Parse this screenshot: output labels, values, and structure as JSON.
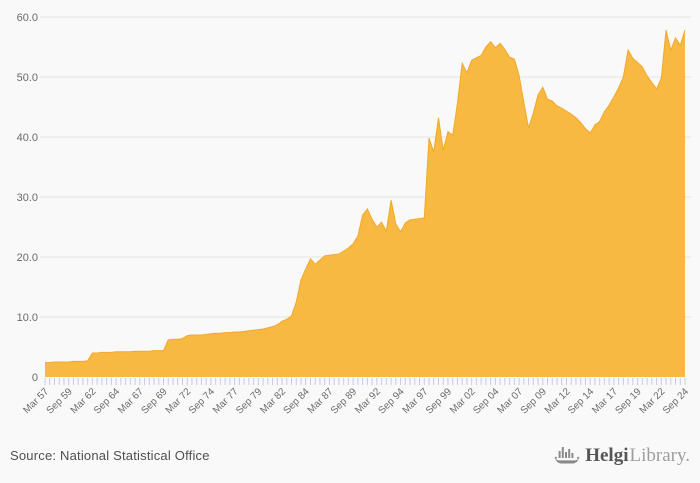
{
  "page": {
    "background": "#f9f9f9"
  },
  "chart_data": {
    "type": "area",
    "title": "",
    "legend": "none",
    "grid": "horizontal",
    "y_axis": {
      "min": 0,
      "max": 60,
      "tick_labels": [
        "60.0",
        "50.0",
        "40.0",
        "30.0",
        "20.0",
        "10.0",
        "0"
      ]
    },
    "x_axis": {
      "label_every": 5,
      "tick_labels": [
        "Mar 57",
        "Sep 59",
        "Mar 62",
        "Sep 64",
        "Mar 67",
        "Sep 69",
        "Mar 72",
        "Sep 74",
        "Mar 77",
        "Sep 79",
        "Mar 82",
        "Sep 84",
        "Mar 87",
        "Sep 89",
        "Mar 92",
        "Sep 94",
        "Mar 97",
        "Sep 99",
        "Mar 02",
        "Sep 04",
        "Mar 07",
        "Sep 09",
        "Mar 12",
        "Sep 14",
        "Mar 17",
        "Sep 19",
        "Mar 22",
        "Sep 24"
      ]
    },
    "colors": {
      "fill": "#f7b942",
      "line": "#f0a92e",
      "grid": "#e4e4e4",
      "tick": "#c3cce3",
      "axis_text": "#6b6b6b"
    },
    "series": [
      {
        "periods": [
          "Mar 57",
          "Sep 57",
          "Mar 58",
          "Sep 58",
          "Mar 59",
          "Sep 59",
          "Mar 60",
          "Sep 60",
          "Mar 61",
          "Sep 61",
          "Mar 62",
          "Sep 62",
          "Mar 63",
          "Sep 63",
          "Mar 64",
          "Sep 64",
          "Mar 65",
          "Sep 65",
          "Mar 66",
          "Sep 66",
          "Mar 67",
          "Sep 67",
          "Mar 68",
          "Sep 68",
          "Mar 69",
          "Sep 69",
          "Mar 70",
          "Sep 70",
          "Mar 71",
          "Sep 71",
          "Mar 72",
          "Sep 72",
          "Mar 73",
          "Sep 73",
          "Mar 74",
          "Sep 74",
          "Mar 75",
          "Sep 75",
          "Mar 76",
          "Sep 76",
          "Mar 77",
          "Sep 77",
          "Mar 78",
          "Sep 78",
          "Mar 79",
          "Sep 79",
          "Mar 80",
          "Sep 80",
          "Mar 81",
          "Sep 81",
          "Mar 82",
          "Sep 82",
          "Mar 83",
          "Sep 83",
          "Mar 84",
          "Sep 84",
          "Mar 85",
          "Sep 85",
          "Mar 86",
          "Sep 86",
          "Mar 87",
          "Sep 87",
          "Mar 88",
          "Sep 88",
          "Mar 89",
          "Sep 89",
          "Mar 90",
          "Sep 90",
          "Mar 91",
          "Sep 91",
          "Mar 92",
          "Sep 92",
          "Mar 93",
          "Sep 93",
          "Mar 94",
          "Sep 94",
          "Mar 95",
          "Sep 95",
          "Mar 96",
          "Sep 96",
          "Mar 97",
          "Sep 97",
          "Mar 98",
          "Sep 98",
          "Mar 99",
          "Sep 99",
          "Mar 00",
          "Sep 00",
          "Mar 01",
          "Sep 01",
          "Mar 02",
          "Sep 02",
          "Mar 03",
          "Sep 03",
          "Mar 04",
          "Sep 04",
          "Mar 05",
          "Sep 05",
          "Mar 06",
          "Sep 06",
          "Mar 07",
          "Sep 07",
          "Mar 08",
          "Sep 08",
          "Mar 09",
          "Sep 09",
          "Mar 10",
          "Sep 10",
          "Mar 11",
          "Sep 11",
          "Mar 12",
          "Sep 12",
          "Mar 13",
          "Sep 13",
          "Mar 14",
          "Sep 14",
          "Mar 15",
          "Sep 15",
          "Mar 16",
          "Sep 16",
          "Mar 17",
          "Sep 17",
          "Mar 18",
          "Sep 18",
          "Mar 19",
          "Sep 19",
          "Mar 20",
          "Sep 20",
          "Mar 21",
          "Sep 21",
          "Mar 22",
          "Sep 22",
          "Mar 23",
          "Sep 23",
          "Mar 24",
          "Sep 24"
        ],
        "values": [
          2.4,
          2.4,
          2.5,
          2.5,
          2.5,
          2.5,
          2.6,
          2.6,
          2.6,
          2.7,
          4.0,
          4.0,
          4.1,
          4.1,
          4.1,
          4.2,
          4.2,
          4.2,
          4.2,
          4.3,
          4.3,
          4.3,
          4.3,
          4.4,
          4.4,
          4.4,
          6.2,
          6.3,
          6.3,
          6.4,
          6.9,
          7.0,
          7.0,
          7.0,
          7.1,
          7.2,
          7.3,
          7.3,
          7.4,
          7.4,
          7.5,
          7.5,
          7.6,
          7.7,
          7.8,
          7.9,
          8.0,
          8.2,
          8.4,
          8.7,
          9.3,
          9.6,
          10.2,
          12.5,
          16.2,
          18.0,
          19.7,
          18.8,
          19.5,
          20.2,
          20.3,
          20.4,
          20.5,
          21.0,
          21.5,
          22.2,
          23.5,
          27.0,
          28.0,
          26.3,
          25.0,
          25.8,
          24.3,
          29.5,
          25.5,
          24.2,
          25.7,
          26.2,
          26.3,
          26.4,
          26.5,
          39.8,
          37.5,
          43.2,
          37.8,
          40.9,
          40.3,
          45.6,
          52.3,
          50.7,
          52.8,
          53.2,
          53.6,
          55.0,
          55.9,
          54.9,
          55.6,
          54.6,
          53.3,
          53.0,
          50.3,
          45.8,
          41.5,
          44.0,
          47.0,
          48.3,
          46.3,
          46.0,
          45.2,
          44.8,
          44.3,
          43.8,
          43.2,
          42.4,
          41.4,
          40.7,
          42.0,
          42.6,
          44.2,
          45.3,
          46.7,
          48.2,
          50.0,
          54.5,
          53.1,
          52.4,
          51.7,
          50.2,
          49.1,
          48.0,
          49.8,
          57.8,
          54.5,
          56.5,
          55.3,
          57.8
        ]
      }
    ]
  },
  "footer": {
    "source": "Source: National Statistical Office",
    "logo": {
      "icon": "helgi-ship-icon",
      "brand_bold": "Helgi",
      "brand_light": "Library.",
      "icon_color": "#8a8a8a"
    }
  }
}
